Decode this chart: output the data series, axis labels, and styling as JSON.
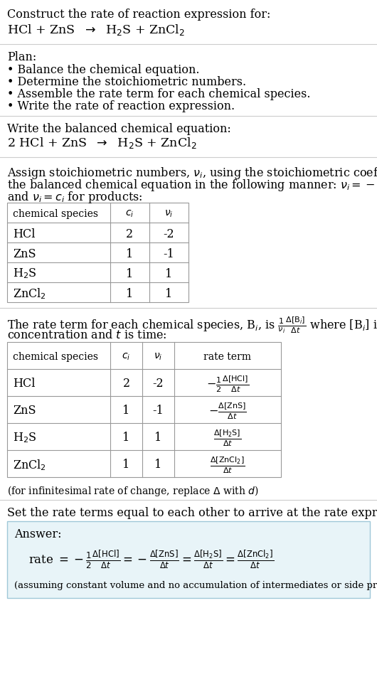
{
  "bg_color": "#ffffff",
  "text_color": "#000000",
  "plan_header": "Plan:",
  "plan_items": [
    "• Balance the chemical equation.",
    "• Determine the stoichiometric numbers.",
    "• Assemble the rate term for each chemical species.",
    "• Write the rate of reaction expression."
  ],
  "table1_headers": [
    "chemical species",
    "$c_i$",
    "$\\nu_i$"
  ],
  "table1_rows": [
    [
      "HCl",
      "2",
      "-2"
    ],
    [
      "ZnS",
      "1",
      "-1"
    ],
    [
      "H$_2$S",
      "1",
      "1"
    ],
    [
      "ZnCl$_2$",
      "1",
      "1"
    ]
  ],
  "table2_headers": [
    "chemical species",
    "$c_i$",
    "$\\nu_i$",
    "rate term"
  ],
  "table2_rows": [
    [
      "HCl",
      "2",
      "-2",
      "$-\\frac{1}{2}\\frac{\\Delta[\\mathrm{HCl}]}{\\Delta t}$"
    ],
    [
      "ZnS",
      "1",
      "-1",
      "$-\\frac{\\Delta[\\mathrm{ZnS}]}{\\Delta t}$"
    ],
    [
      "H$_2$S",
      "1",
      "1",
      "$\\frac{\\Delta[\\mathrm{H_2S}]}{\\Delta t}$"
    ],
    [
      "ZnCl$_2$",
      "1",
      "1",
      "$\\frac{\\Delta[\\mathrm{ZnCl_2}]}{\\Delta t}$"
    ]
  ],
  "answer_box_color": "#e8f4f8",
  "answer_box_border": "#a0c8d8"
}
